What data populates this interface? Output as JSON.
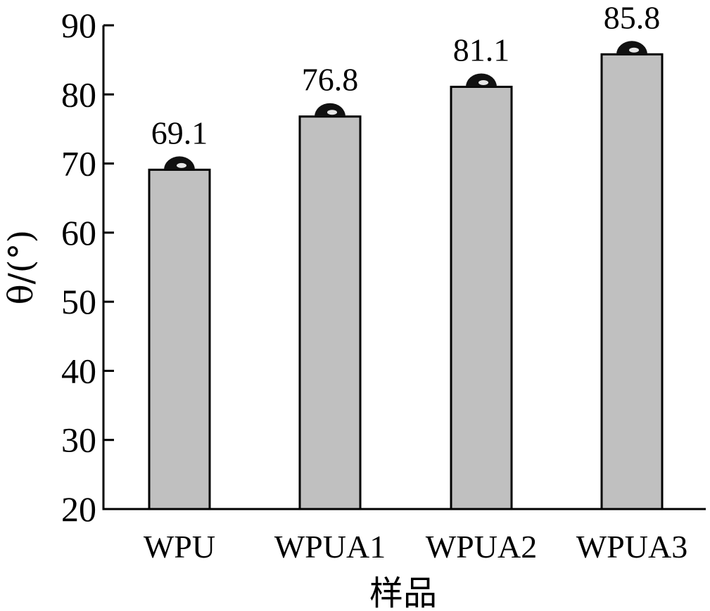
{
  "chart_data": {
    "type": "bar",
    "categories": [
      "WPU",
      "WPUA1",
      "WPUA2",
      "WPUA3"
    ],
    "values": [
      69.1,
      76.8,
      81.1,
      85.8
    ],
    "data_labels": [
      "69.1",
      "76.8",
      "81.1",
      "85.8"
    ],
    "yticks": [
      "20",
      "30",
      "40",
      "50",
      "60",
      "70",
      "80",
      "90"
    ],
    "ylim": [
      20,
      90
    ],
    "xlabel": "样品",
    "ylabel": "θ/(°)",
    "grid": false,
    "bar_color": "#c0c0c0",
    "bar_edge_color": "#000000",
    "droplet_color": "#111111"
  }
}
